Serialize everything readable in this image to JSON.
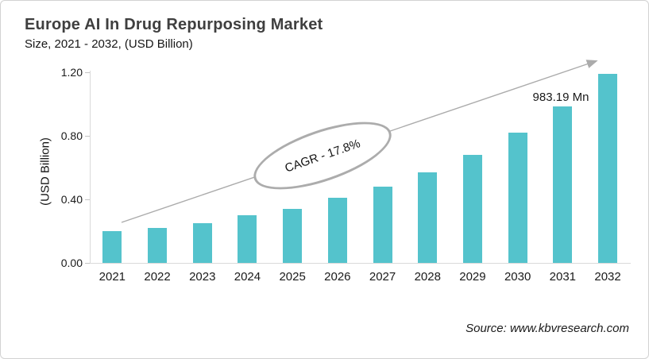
{
  "header": {
    "title": "Europe AI In Drug Repurposing Market",
    "subtitle": "Size, 2021 - 2032, (USD Billion)"
  },
  "chart_data": {
    "type": "bar",
    "title": "Europe AI In Drug Repurposing Market",
    "subtitle": "Size, 2021 - 2032, (USD Billion)",
    "categories": [
      "2021",
      "2022",
      "2023",
      "2024",
      "2025",
      "2026",
      "2027",
      "2028",
      "2029",
      "2030",
      "2031",
      "2032"
    ],
    "values": [
      0.2,
      0.22,
      0.25,
      0.3,
      0.34,
      0.41,
      0.48,
      0.57,
      0.68,
      0.82,
      0.98319,
      1.19
    ],
    "xlabel": "",
    "ylabel": "(USD Billion)",
    "ylim": [
      0,
      1.2
    ],
    "yticks": [
      0,
      0.4,
      0.8,
      1.2
    ],
    "ytick_labels": [
      "0.00",
      "0.40",
      "0.80",
      "1.20"
    ],
    "bar_color": "#54c3cc",
    "grid": false,
    "legend": "none",
    "annotations": {
      "cagr_label": "CAGR - 17.8%",
      "value_label": "983.19 Mn",
      "value_label_category": "2031",
      "trend_arrow": "bottom-left-to-top-right"
    }
  },
  "footer": {
    "source": "Source: www.kbvresearch.com"
  }
}
